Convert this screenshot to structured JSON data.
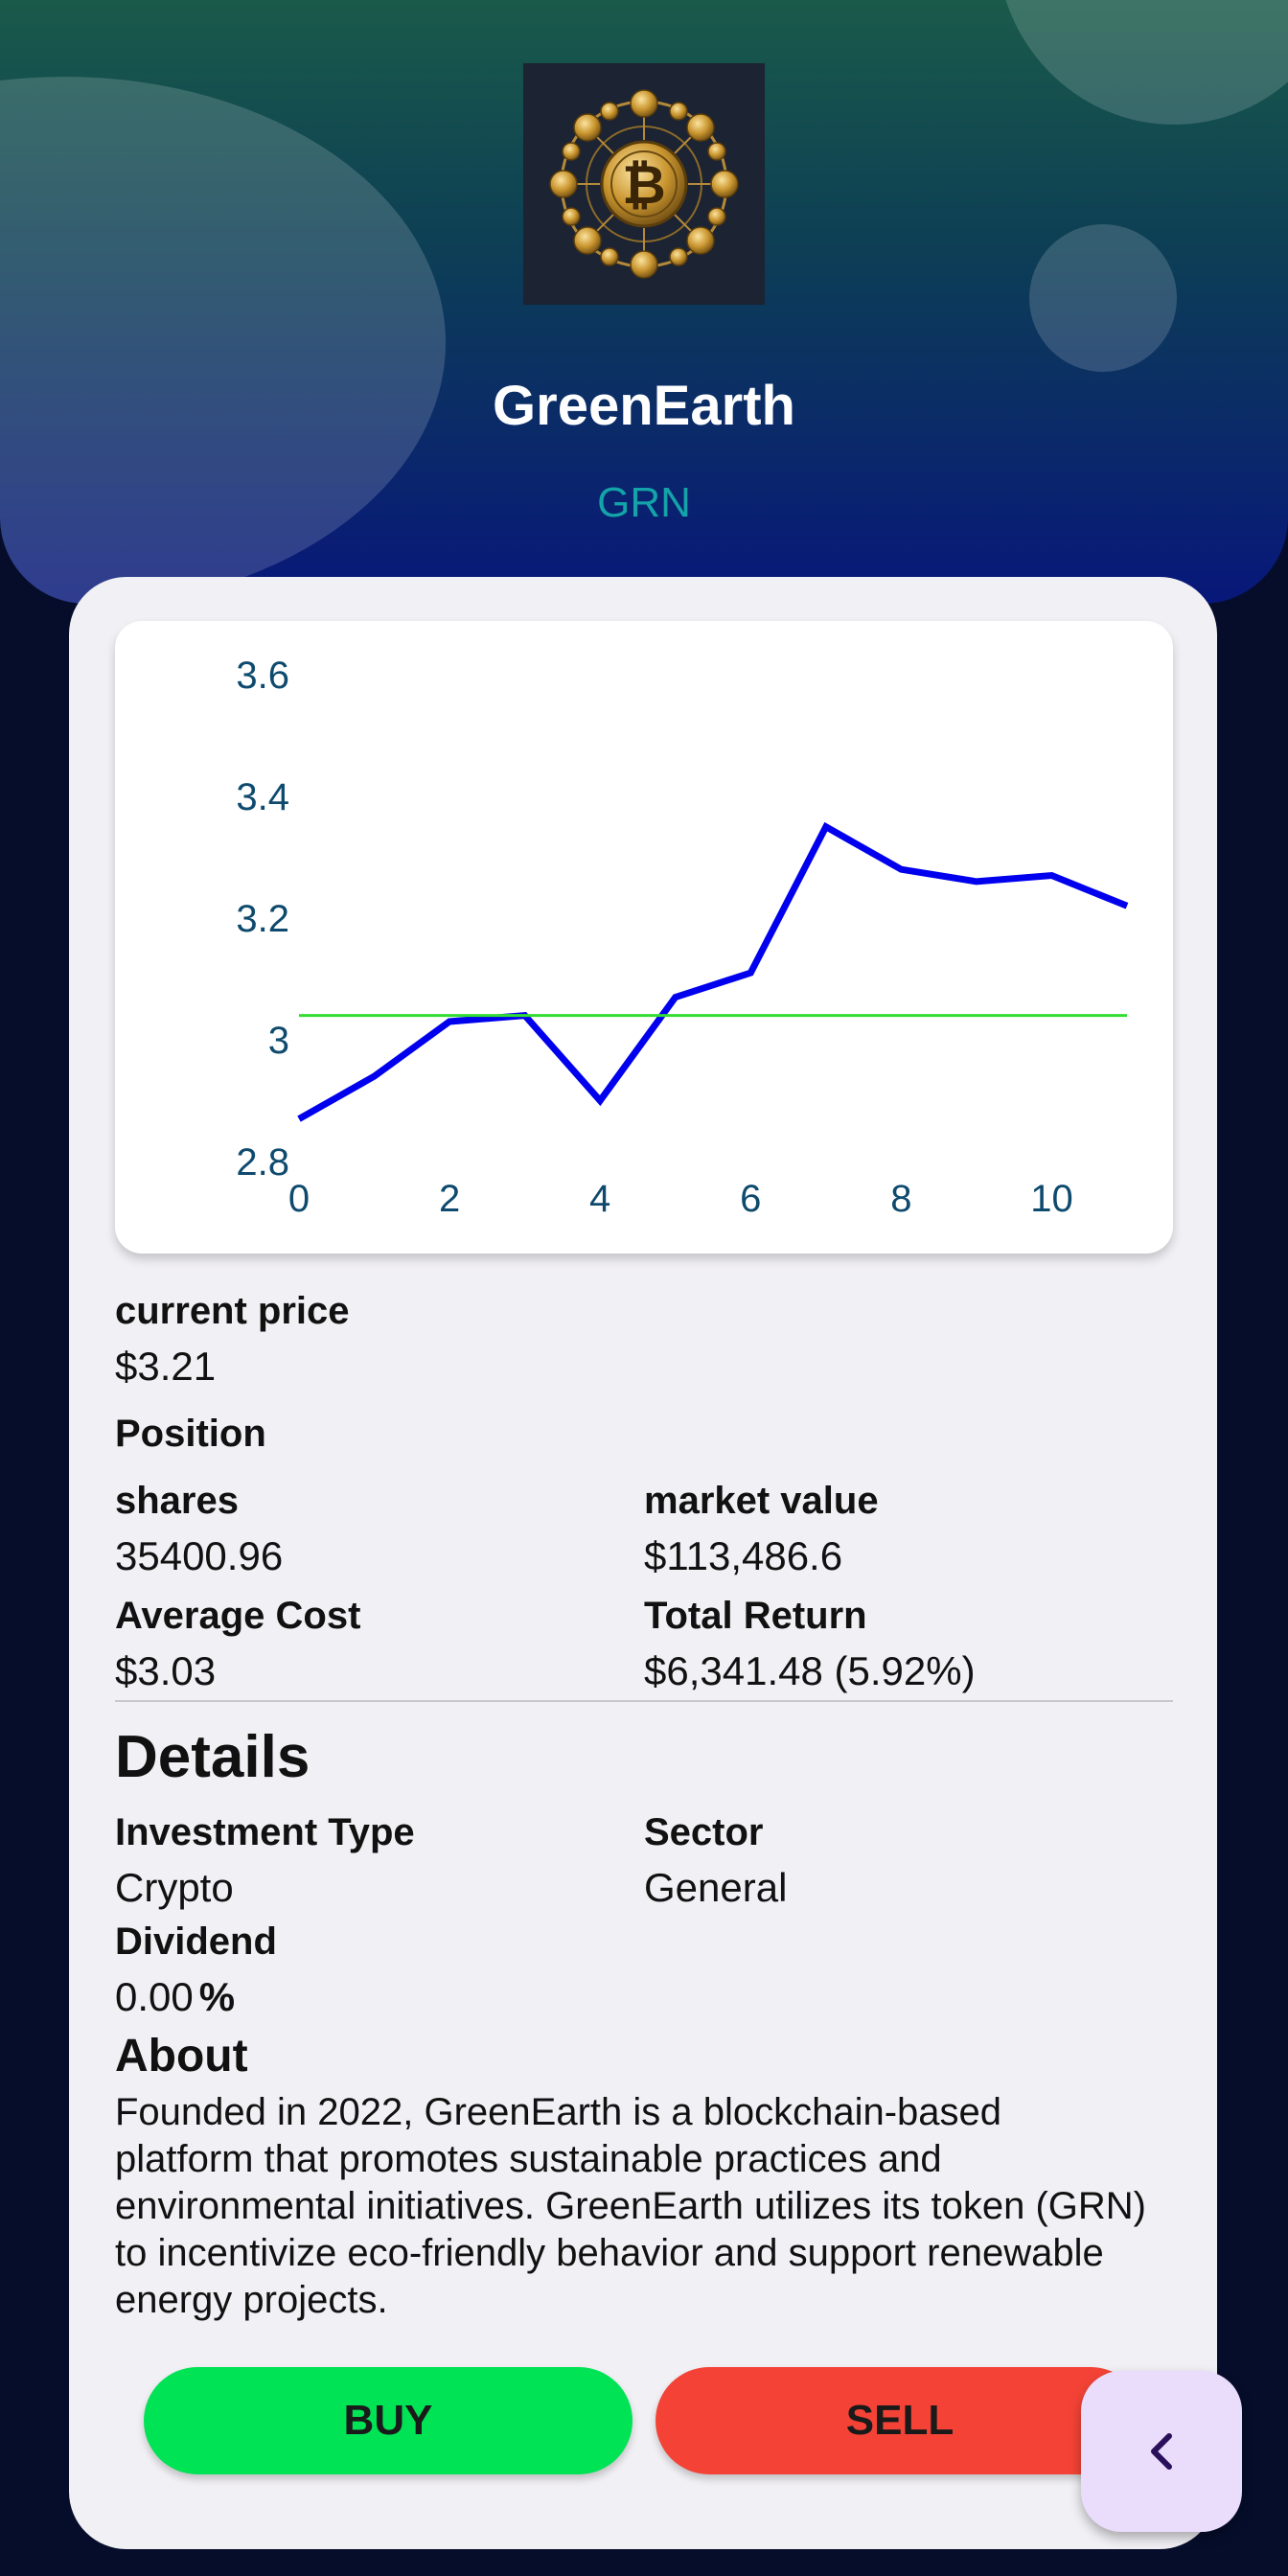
{
  "asset": {
    "name": "GreenEarth",
    "ticker": "GRN"
  },
  "chart_data": {
    "type": "line",
    "x": [
      0,
      1,
      2,
      3,
      4,
      5,
      6,
      7,
      8,
      9,
      10,
      11
    ],
    "series": [
      {
        "values": [
          2.87,
          2.94,
          3.03,
          3.04,
          2.9,
          3.07,
          3.11,
          3.35,
          3.28,
          3.26,
          3.27,
          3.22
        ],
        "color": "#0000ee"
      },
      {
        "values": [
          3.04,
          3.04,
          3.04,
          3.04,
          3.04,
          3.04,
          3.04,
          3.04,
          3.04,
          3.04,
          3.04,
          3.04
        ],
        "color": "#33dd33"
      }
    ],
    "xticks": [
      "0",
      "2",
      "4",
      "6",
      "8",
      "10"
    ],
    "yticks": [
      "2.8",
      "3",
      "3.2",
      "3.4",
      "3.6"
    ],
    "xlim": [
      0,
      11
    ],
    "ylim": [
      2.8,
      3.6
    ],
    "grid": false
  },
  "price": {
    "label": "current price",
    "value": "$3.21"
  },
  "position": {
    "heading": "Position",
    "shares_label": "shares",
    "shares_value": "35400.96",
    "market_value_label": "market value",
    "market_value": "$113,486.6",
    "avg_cost_label": "Average Cost",
    "avg_cost_value": "$3.03",
    "total_return_label": "Total Return",
    "total_return_value": "$6,341.48 (5.92%)"
  },
  "details": {
    "heading": "Details",
    "investment_type_label": "Investment Type",
    "investment_type_value": "Crypto",
    "sector_label": "Sector",
    "sector_value": "General",
    "dividend_label": "Dividend",
    "dividend_value": "0.00",
    "dividend_unit": "%"
  },
  "about": {
    "heading": "About",
    "text": "Founded in 2022, GreenEarth is a blockchain-based platform that promotes sustainable practices and environmental initiatives. GreenEarth utilizes its token (GRN) to incentivize eco-friendly behavior and support renewable energy projects."
  },
  "actions": {
    "buy_label": "BUY",
    "sell_label": "SELL"
  },
  "icons": {
    "logo": "bitcoin-network-logo",
    "back": "chevron-left-icon"
  },
  "colors": {
    "buy": "#00e355",
    "sell": "#f44336",
    "ticker": "#14a3a8",
    "axis_text": "#0e4a6e"
  }
}
